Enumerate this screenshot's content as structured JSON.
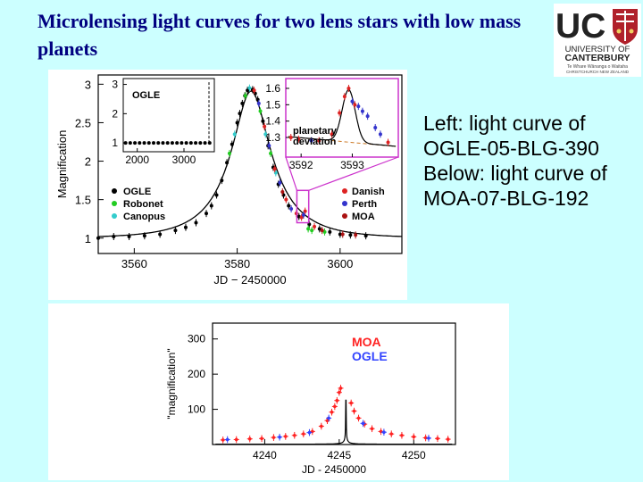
{
  "slide": {
    "title": "Microlensing light curves for two lens stars with low mass planets",
    "caption": [
      "Left: light curve of",
      "OGLE-05-BLG-390",
      "Below: light curve of",
      "MOA-07-BLG-192"
    ]
  },
  "logo": {
    "text": "UC",
    "name_lines": [
      "UNIVERSITY OF",
      "CANTERBURY"
    ],
    "motto_lines": [
      "Te Whare Wānanga o Waitaha",
      "CHRISTCHURCH NEW ZEALAND"
    ],
    "colors": {
      "letters": "#222222",
      "crest": "#b0202a",
      "background": "#ffffff"
    }
  },
  "chart_data": [
    {
      "type": "scatter",
      "xlabel": "JD − 2450000",
      "ylabel": "Magnification",
      "xlim": [
        3553,
        3612
      ],
      "ylim": [
        0.8,
        3.12
      ],
      "xticks": [
        3560,
        3580,
        3600
      ],
      "yticks": [
        1,
        1.5,
        2,
        2.5,
        3
      ],
      "legend": [
        {
          "name": "OGLE",
          "color": "#000000"
        },
        {
          "name": "Robonet",
          "color": "#22cc22"
        },
        {
          "name": "Canopus",
          "color": "#33cccc"
        },
        {
          "name": "Danish",
          "color": "#dd2222"
        },
        {
          "name": "Perth",
          "color": "#3333cc"
        },
        {
          "name": "MOA",
          "color": "#aa1111"
        }
      ],
      "model": {
        "t0": 3582.7,
        "u0": 0.36,
        "tE": 10.5
      },
      "series": [
        {
          "name": "OGLE",
          "color": "#000000",
          "points": [
            [
              3553,
              1.0
            ],
            [
              3556,
              1.02
            ],
            [
              3559,
              1.02
            ],
            [
              3562,
              1.03
            ],
            [
              3565,
              1.05
            ],
            [
              3568,
              1.1
            ],
            [
              3570,
              1.14
            ],
            [
              3572,
              1.2
            ],
            [
              3574,
              1.32
            ],
            [
              3575,
              1.42
            ],
            [
              3576,
              1.56
            ],
            [
              3577,
              1.75
            ],
            [
              3578,
              1.98
            ],
            [
              3579,
              2.22
            ],
            [
              3580,
              2.5
            ],
            [
              3580.5,
              2.62
            ],
            [
              3581,
              2.75
            ],
            [
              3581.5,
              2.85
            ],
            [
              3582,
              2.92
            ],
            [
              3583,
              2.93
            ],
            [
              3583.5,
              2.88
            ],
            [
              3584,
              2.8
            ],
            [
              3585,
              2.52
            ],
            [
              3586,
              2.2
            ],
            [
              3587,
              1.92
            ],
            [
              3588,
              1.7
            ],
            [
              3589,
              1.56
            ],
            [
              3590,
              1.42
            ],
            [
              3592,
              1.28
            ],
            [
              3594,
              1.18
            ],
            [
              3596,
              1.12
            ],
            [
              3598,
              1.08
            ],
            [
              3600,
              1.05
            ],
            [
              3602,
              1.04
            ],
            [
              3605,
              1.03
            ]
          ]
        },
        {
          "name": "Robonet",
          "color": "#22cc22",
          "points": [
            [
              3578.5,
              2.1
            ],
            [
              3581.6,
              2.85
            ],
            [
              3584.5,
              2.65
            ],
            [
              3586.5,
              2.1
            ],
            [
              3593.8,
              1.12
            ],
            [
              3594.5,
              1.1
            ],
            [
              3597,
              1.08
            ]
          ]
        },
        {
          "name": "Canopus",
          "color": "#33cccc",
          "points": [
            [
              3579.5,
              2.35
            ],
            [
              3582.4,
              2.95
            ],
            [
              3585.5,
              2.35
            ],
            [
              3587.5,
              1.85
            ]
          ]
        },
        {
          "name": "Danish",
          "color": "#dd2222",
          "points": [
            [
              3583.3,
              2.92
            ],
            [
              3585.3,
              2.45
            ],
            [
              3587.3,
              1.9
            ],
            [
              3589.5,
              1.5
            ],
            [
              3591.5,
              1.32
            ],
            [
              3592.5,
              1.27
            ],
            [
              3593.2,
              1.35
            ],
            [
              3595,
              1.15
            ]
          ]
        },
        {
          "name": "Perth",
          "color": "#3333cc",
          "points": [
            [
              3584.2,
              2.75
            ],
            [
              3586.2,
              2.2
            ],
            [
              3588.3,
              1.72
            ],
            [
              3590.5,
              1.38
            ],
            [
              3592.9,
              1.3
            ]
          ]
        },
        {
          "name": "MOA",
          "color": "#aa1111",
          "points": [
            [
              3588.8,
              1.6
            ],
            [
              3596.5,
              1.1
            ],
            [
              3600.5,
              1.05
            ],
            [
              3603,
              1.04
            ]
          ]
        }
      ],
      "inset_baseline": {
        "label": "OGLE",
        "xlim": [
          1700,
          3650
        ],
        "ylim": [
          0.7,
          3.2
        ],
        "xticks": [
          2000,
          3000
        ],
        "yticks": [
          1,
          2,
          3
        ],
        "points": [
          [
            1750,
            1
          ],
          [
            1850,
            1
          ],
          [
            1950,
            1
          ],
          [
            2050,
            1
          ],
          [
            2150,
            1
          ],
          [
            2250,
            1
          ],
          [
            2350,
            1
          ],
          [
            2450,
            1
          ],
          [
            2550,
            1
          ],
          [
            2650,
            1
          ],
          [
            2750,
            1
          ],
          [
            2850,
            1
          ],
          [
            2950,
            1
          ],
          [
            3050,
            1
          ],
          [
            3150,
            1
          ],
          [
            3250,
            1
          ],
          [
            3350,
            1
          ],
          [
            3450,
            1
          ],
          [
            3550,
            1
          ]
        ]
      },
      "inset_deviation": {
        "label": [
          "planetary",
          "deviation"
        ],
        "xlim": [
          3591.7,
          3593.9
        ],
        "ylim": [
          1.18,
          1.66
        ],
        "xticks": [
          3592,
          3593
        ],
        "yticks": [
          1.3,
          1.4,
          1.5,
          1.6
        ],
        "points": [
          {
            "x": 3591.8,
            "y": 1.3,
            "s": "Danish"
          },
          {
            "x": 3591.95,
            "y": 1.29,
            "s": "Danish"
          },
          {
            "x": 3592.2,
            "y": 1.28,
            "s": "Perth"
          },
          {
            "x": 3592.35,
            "y": 1.28,
            "s": "Danish"
          },
          {
            "x": 3592.6,
            "y": 1.32,
            "s": "Danish"
          },
          {
            "x": 3592.75,
            "y": 1.45,
            "s": "Danish"
          },
          {
            "x": 3592.85,
            "y": 1.55,
            "s": "Danish"
          },
          {
            "x": 3592.93,
            "y": 1.6,
            "s": "Danish"
          },
          {
            "x": 3593.0,
            "y": 1.52,
            "s": "Perth"
          },
          {
            "x": 3593.05,
            "y": 1.5,
            "s": "Danish"
          },
          {
            "x": 3593.12,
            "y": 1.49,
            "s": "Perth"
          },
          {
            "x": 3593.2,
            "y": 1.46,
            "s": "Perth"
          },
          {
            "x": 3593.3,
            "y": 1.43,
            "s": "Perth"
          },
          {
            "x": 3593.45,
            "y": 1.36,
            "s": "Perth"
          },
          {
            "x": 3593.55,
            "y": 1.32,
            "s": "Perth"
          },
          {
            "x": 3593.7,
            "y": 1.27,
            "s": "Danish"
          }
        ]
      }
    },
    {
      "type": "scatter",
      "xlabel": "JD - 2450000",
      "ylabel": "\"magnification\"",
      "xlim": [
        4236.5,
        4252.8
      ],
      "ylim": [
        0,
        345
      ],
      "xticks": [
        4240,
        4245,
        4250
      ],
      "yticks": [
        100,
        200,
        300
      ],
      "legend": [
        {
          "name": "MOA",
          "color": "#ff2222"
        },
        {
          "name": "OGLE",
          "color": "#3344ff"
        }
      ],
      "model": {
        "t0": 4245.45,
        "u0": 0.0035,
        "tE": 1.4
      },
      "series": [
        {
          "name": "MOA",
          "color": "#ff2222",
          "points": [
            [
              4237.2,
              13
            ],
            [
              4238.1,
              14
            ],
            [
              4239.0,
              16
            ],
            [
              4239.8,
              17
            ],
            [
              4240.6,
              20
            ],
            [
              4241.4,
              23
            ],
            [
              4242.0,
              26
            ],
            [
              4242.6,
              30
            ],
            [
              4243.2,
              37
            ],
            [
              4243.8,
              52
            ],
            [
              4244.2,
              68
            ],
            [
              4244.5,
              92
            ],
            [
              4244.7,
              108
            ],
            [
              4244.85,
              125
            ],
            [
              4245.0,
              148
            ],
            [
              4245.1,
              160
            ],
            [
              4245.8,
              118
            ],
            [
              4246.0,
              95
            ],
            [
              4246.3,
              75
            ],
            [
              4246.7,
              58
            ],
            [
              4247.2,
              45
            ],
            [
              4247.8,
              37
            ],
            [
              4248.5,
              30
            ],
            [
              4249.2,
              26
            ],
            [
              4250.0,
              22
            ],
            [
              4250.8,
              19
            ],
            [
              4251.6,
              17
            ],
            [
              4252.3,
              15
            ]
          ]
        },
        {
          "name": "OGLE",
          "color": "#3344ff",
          "points": [
            [
              4237.5,
              14
            ],
            [
              4241.0,
              21
            ],
            [
              4243.0,
              34
            ],
            [
              4244.3,
              75
            ],
            [
              4246.6,
              60
            ],
            [
              4248.0,
              35
            ],
            [
              4251.0,
              18
            ]
          ]
        }
      ]
    }
  ]
}
